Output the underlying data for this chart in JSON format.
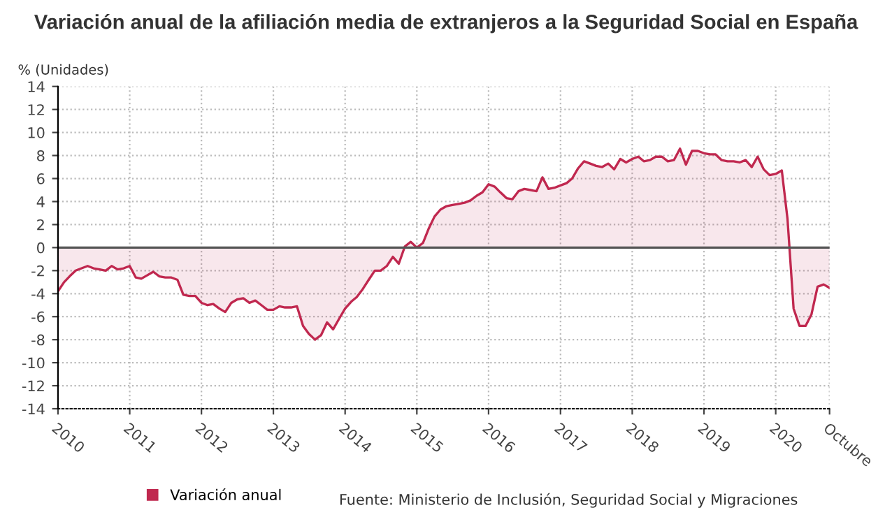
{
  "chart_data": {
    "type": "area",
    "title": "Variación anual de la afiliación media de extranjeros a la Seguridad Social en España",
    "ylabel": "% (Unidades)",
    "x": [
      "2010-01",
      "2010-02",
      "2010-03",
      "2010-04",
      "2010-05",
      "2010-06",
      "2010-07",
      "2010-08",
      "2010-09",
      "2010-10",
      "2010-11",
      "2010-12",
      "2011-01",
      "2011-02",
      "2011-03",
      "2011-04",
      "2011-05",
      "2011-06",
      "2011-07",
      "2011-08",
      "2011-09",
      "2011-10",
      "2011-11",
      "2011-12",
      "2012-01",
      "2012-02",
      "2012-03",
      "2012-04",
      "2012-05",
      "2012-06",
      "2012-07",
      "2012-08",
      "2012-09",
      "2012-10",
      "2012-11",
      "2012-12",
      "2013-01",
      "2013-02",
      "2013-03",
      "2013-04",
      "2013-05",
      "2013-06",
      "2013-07",
      "2013-08",
      "2013-09",
      "2013-10",
      "2013-11",
      "2013-12",
      "2014-01",
      "2014-02",
      "2014-03",
      "2014-04",
      "2014-05",
      "2014-06",
      "2014-07",
      "2014-08",
      "2014-09",
      "2014-10",
      "2014-11",
      "2014-12",
      "2015-01",
      "2015-02",
      "2015-03",
      "2015-04",
      "2015-05",
      "2015-06",
      "2015-07",
      "2015-08",
      "2015-09",
      "2015-10",
      "2015-11",
      "2015-12",
      "2016-01",
      "2016-02",
      "2016-03",
      "2016-04",
      "2016-05",
      "2016-06",
      "2016-07",
      "2016-08",
      "2016-09",
      "2016-10",
      "2016-11",
      "2016-12",
      "2017-01",
      "2017-02",
      "2017-03",
      "2017-04",
      "2017-05",
      "2017-06",
      "2017-07",
      "2017-08",
      "2017-09",
      "2017-10",
      "2017-11",
      "2017-12",
      "2018-01",
      "2018-02",
      "2018-03",
      "2018-04",
      "2018-05",
      "2018-06",
      "2018-07",
      "2018-08",
      "2018-09",
      "2018-10",
      "2018-11",
      "2018-12",
      "2019-01",
      "2019-02",
      "2019-03",
      "2019-04",
      "2019-05",
      "2019-06",
      "2019-07",
      "2019-08",
      "2019-09",
      "2019-10",
      "2019-11",
      "2019-12",
      "2020-01",
      "2020-02",
      "2020-03",
      "2020-04",
      "2020-05",
      "2020-06",
      "2020-07",
      "2020-08",
      "2020-09",
      "2020-10"
    ],
    "series": [
      {
        "name": "Variación anual",
        "color": "#c0284f",
        "values": [
          -3.8,
          -3.0,
          -2.5,
          -2.0,
          -1.8,
          -1.6,
          -1.8,
          -1.9,
          -2.0,
          -1.6,
          -1.9,
          -1.8,
          -1.6,
          -2.6,
          -2.7,
          -2.4,
          -2.1,
          -2.5,
          -2.6,
          -2.6,
          -2.8,
          -4.1,
          -4.2,
          -4.2,
          -4.8,
          -5.0,
          -4.9,
          -5.3,
          -5.6,
          -4.8,
          -4.5,
          -4.4,
          -4.8,
          -4.6,
          -5.0,
          -5.4,
          -5.4,
          -5.1,
          -5.2,
          -5.2,
          -5.1,
          -6.8,
          -7.5,
          -8.0,
          -7.6,
          -6.5,
          -7.1,
          -6.2,
          -5.3,
          -4.7,
          -4.3,
          -3.6,
          -2.8,
          -2.0,
          -2.0,
          -1.6,
          -0.8,
          -1.4,
          0.1,
          0.5,
          0.0,
          0.4,
          1.6,
          2.7,
          3.3,
          3.6,
          3.7,
          3.8,
          3.9,
          4.1,
          4.5,
          4.8,
          5.5,
          5.3,
          4.8,
          4.3,
          4.2,
          4.9,
          5.1,
          5.0,
          4.9,
          6.1,
          5.1,
          5.2,
          5.4,
          5.6,
          6.0,
          6.9,
          7.5,
          7.3,
          7.1,
          7.0,
          7.3,
          6.8,
          7.7,
          7.4,
          7.7,
          7.9,
          7.5,
          7.6,
          7.9,
          7.9,
          7.5,
          7.6,
          8.6,
          7.2,
          8.4,
          8.4,
          8.2,
          8.1,
          8.1,
          7.6,
          7.5,
          7.5,
          7.4,
          7.6,
          7.0,
          7.9,
          6.8,
          6.3,
          6.4,
          6.7,
          2.5,
          -5.3,
          -6.8,
          -6.8,
          -5.8,
          -3.4,
          -3.2,
          -3.5
        ]
      }
    ],
    "xlim": [
      "2010-01",
      "2020-10"
    ],
    "xticks": [
      {
        "value": "2010-01",
        "label": "2010"
      },
      {
        "value": "2011-01",
        "label": "2011"
      },
      {
        "value": "2012-01",
        "label": "2012"
      },
      {
        "value": "2013-01",
        "label": "2013"
      },
      {
        "value": "2014-01",
        "label": "2014"
      },
      {
        "value": "2015-01",
        "label": "2015"
      },
      {
        "value": "2016-01",
        "label": "2016"
      },
      {
        "value": "2017-01",
        "label": "2017"
      },
      {
        "value": "2018-01",
        "label": "2018"
      },
      {
        "value": "2019-01",
        "label": "2019"
      },
      {
        "value": "2020-01",
        "label": "2020"
      },
      {
        "value": "2020-10",
        "label": "Octubre"
      }
    ],
    "ylim": [
      -14,
      14
    ],
    "yticks": [
      -14,
      -12,
      -10,
      -8,
      -6,
      -4,
      -2,
      0,
      2,
      4,
      6,
      8,
      10,
      12,
      14
    ],
    "ref_lines": [
      {
        "axis": "y",
        "value": 0,
        "color": "#555555"
      }
    ],
    "grid": true,
    "legend": "bottom",
    "annotations": [
      "Fuente: Ministerio de Inclusión, Seguridad Social y Migraciones"
    ]
  }
}
